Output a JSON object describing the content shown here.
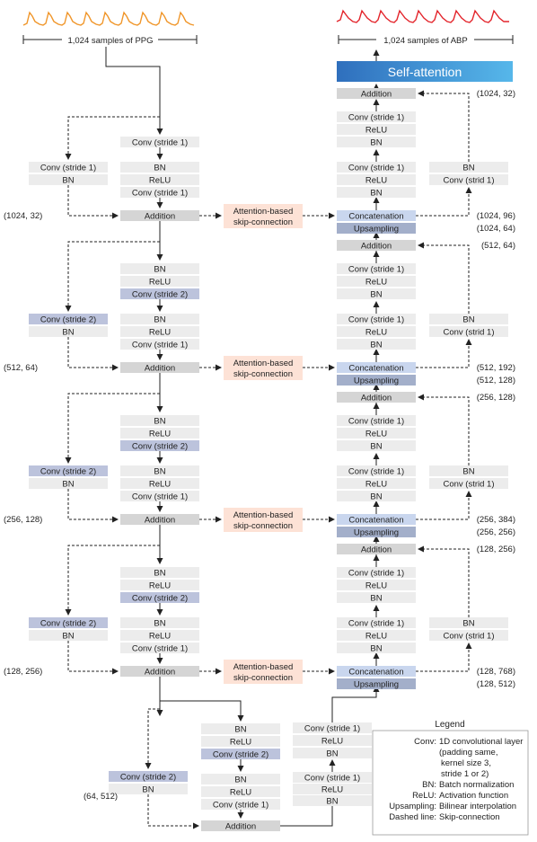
{
  "labels": {
    "ppg_samples": "1,024 samples of PPG",
    "abp_samples": "1,024 samples of ABP",
    "self_attention": "Self-attention",
    "conv_s1": "Conv (stride 1)",
    "conv_s2": "Conv (stride 2)",
    "conv_strid1": "Conv (strid 1)",
    "bn": "BN",
    "relu": "ReLU",
    "addition": "Addition",
    "concatenation": "Concatenation",
    "upsampling": "Upsampling",
    "attention_line1": "Attention-based",
    "attention_line2": "skip-connection"
  },
  "shapes": {
    "enc": [
      "(1024, 32)",
      "(512, 64)",
      "(256, 128)",
      "(128, 256)",
      "(64, 512)"
    ],
    "dec_addition": [
      "(1024, 32)",
      "(512, 64)",
      "(256, 128)",
      "(128, 256)"
    ],
    "dec_concat": [
      "(1024, 96)",
      "(512, 192)",
      "(256, 384)",
      "(128, 768)"
    ],
    "dec_upsampling": [
      "(1024, 64)",
      "(512, 128)",
      "(256, 256)",
      "(128, 512)"
    ]
  },
  "legend": {
    "title": "Legend",
    "items": [
      {
        "term": "Conv:",
        "desc": [
          "1D convolutional layer",
          "(padding same,",
          "kernel size 3,",
          "stride 1 or 2)"
        ]
      },
      {
        "term": "BN:",
        "desc": [
          "Batch normalization"
        ]
      },
      {
        "term": "ReLU:",
        "desc": [
          "Activation function"
        ]
      },
      {
        "term": "Upsampling:",
        "desc": [
          "Bilinear interpolation"
        ]
      },
      {
        "term": "Dashed line:",
        "desc": [
          "Skip-connection"
        ]
      }
    ]
  },
  "colors": {
    "box_gray": "#ececec",
    "addition_gray": "#d5d5d5",
    "stride2_blue": "#bcc3dc",
    "concat_blue": "#c9d6ee",
    "upsampling_blue": "#a3afca",
    "attention_peach": "#fde2d6",
    "self_attention_start": "#2f6fbd",
    "self_attention_end": "#56b7ea",
    "ppg_wave": "#f0962a",
    "abp_wave": "#e3242b"
  }
}
